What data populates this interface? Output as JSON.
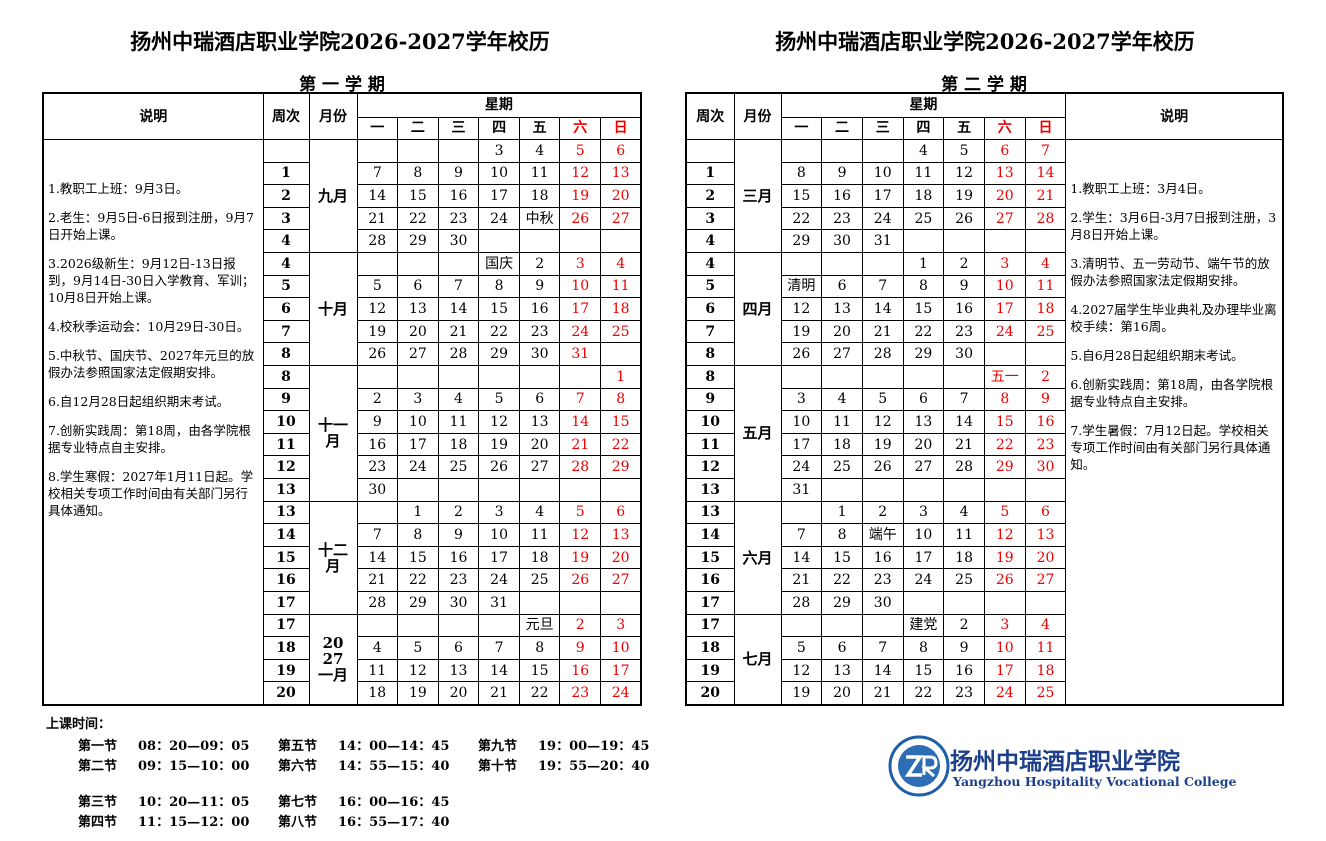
{
  "left": {
    "title": "扬州中瑞酒店职业学院2026-2027学年校历",
    "semester": "第 一 学 期",
    "headers": {
      "notes": "说明",
      "week": "周次",
      "month": "月份",
      "weekday": "星期",
      "days": [
        "一",
        "二",
        "三",
        "四",
        "五",
        "六",
        "日"
      ]
    },
    "notes": [
      "1.教职工上班：9月3日。",
      "2.老生：9月5日-6日报到注册，9月7日开始上课。",
      "3.2026级新生：9月12日-13日报到，9月14日-30日入学教育、军训；10月8日开始上课。",
      "4.校秋季运动会：10月29日-30日。",
      "5.中秋节、国庆节、2027年元旦的放假办法参照国家法定假期安排。",
      "6.自12月28日起组织期末考试。",
      "7.创新实践周：第18周，由各学院根据专业特点自主安排。",
      "8.学生寒假：2027年1月11日起。学校相关专项工作时间由有关部门另行具体通知。"
    ],
    "months": [
      {
        "label": "九月",
        "weeks": [
          {
            "week": null,
            "days": [
              null,
              null,
              null,
              3,
              4,
              5,
              6
            ]
          },
          {
            "week": 1,
            "days": [
              7,
              8,
              9,
              10,
              11,
              12,
              13
            ]
          },
          {
            "week": 2,
            "days": [
              14,
              15,
              16,
              17,
              18,
              19,
              20
            ]
          },
          {
            "week": 3,
            "days": [
              21,
              22,
              23,
              24,
              "中秋",
              26,
              27
            ]
          },
          {
            "week": 4,
            "days": [
              28,
              29,
              30,
              null,
              null,
              null,
              null
            ]
          }
        ]
      },
      {
        "label": "十月",
        "weeks": [
          {
            "week": 4,
            "days": [
              null,
              null,
              null,
              "国庆",
              2,
              3,
              4
            ]
          },
          {
            "week": 5,
            "days": [
              5,
              6,
              7,
              8,
              9,
              10,
              11
            ]
          },
          {
            "week": 6,
            "days": [
              12,
              13,
              14,
              15,
              16,
              17,
              18
            ]
          },
          {
            "week": 7,
            "days": [
              19,
              20,
              21,
              22,
              23,
              24,
              25
            ]
          },
          {
            "week": 8,
            "days": [
              26,
              27,
              28,
              29,
              30,
              31,
              null
            ]
          }
        ]
      },
      {
        "label": "十一月",
        "weeks": [
          {
            "week": 8,
            "days": [
              null,
              null,
              null,
              null,
              null,
              null,
              1
            ]
          },
          {
            "week": 9,
            "days": [
              2,
              3,
              4,
              5,
              6,
              7,
              8
            ]
          },
          {
            "week": 10,
            "days": [
              9,
              10,
              11,
              12,
              13,
              14,
              15
            ]
          },
          {
            "week": 11,
            "days": [
              16,
              17,
              18,
              19,
              20,
              21,
              22
            ]
          },
          {
            "week": 12,
            "days": [
              23,
              24,
              25,
              26,
              27,
              28,
              29
            ]
          },
          {
            "week": 13,
            "days": [
              30,
              null,
              null,
              null,
              null,
              null,
              null
            ]
          }
        ]
      },
      {
        "label": "十二月",
        "weeks": [
          {
            "week": 13,
            "days": [
              null,
              1,
              2,
              3,
              4,
              5,
              6
            ]
          },
          {
            "week": 14,
            "days": [
              7,
              8,
              9,
              10,
              11,
              12,
              13
            ]
          },
          {
            "week": 15,
            "days": [
              14,
              15,
              16,
              17,
              18,
              19,
              20
            ]
          },
          {
            "week": 16,
            "days": [
              21,
              22,
              23,
              24,
              25,
              26,
              27
            ]
          },
          {
            "week": 17,
            "days": [
              28,
              29,
              30,
              31,
              null,
              null,
              null
            ]
          }
        ]
      },
      {
        "label": "2027一月",
        "weeks": [
          {
            "week": 17,
            "days": [
              null,
              null,
              null,
              null,
              "元旦",
              2,
              3
            ]
          },
          {
            "week": 18,
            "days": [
              4,
              5,
              6,
              7,
              8,
              9,
              10
            ]
          },
          {
            "week": 19,
            "days": [
              11,
              12,
              13,
              14,
              15,
              16,
              17
            ]
          },
          {
            "week": 20,
            "days": [
              18,
              19,
              20,
              21,
              22,
              23,
              24
            ]
          }
        ]
      }
    ]
  },
  "right": {
    "title": "扬州中瑞酒店职业学院2026-2027学年校历",
    "semester": "第 二 学 期",
    "headers": {
      "notes": "说明",
      "week": "周次",
      "month": "月份",
      "weekday": "星期",
      "days": [
        "一",
        "二",
        "三",
        "四",
        "五",
        "六",
        "日"
      ]
    },
    "notes": [
      "1.教职工上班：3月4日。",
      "2.学生：3月6日-3月7日报到注册，3月8日开始上课。",
      "3.清明节、五一劳动节、端午节的放假办法参照国家法定假期安排。",
      "4.2027届学生毕业典礼及办理毕业离校手续：第16周。",
      "5.自6月28日起组织期末考试。",
      "6.创新实践周：第18周，由各学院根据专业特点自主安排。",
      "7.学生暑假：7月12日起。学校相关专项工作时间由有关部门另行具体通知。"
    ],
    "months": [
      {
        "label": "三月",
        "weeks": [
          {
            "week": null,
            "days": [
              null,
              null,
              null,
              4,
              5,
              6,
              7
            ]
          },
          {
            "week": 1,
            "days": [
              8,
              9,
              10,
              11,
              12,
              13,
              14
            ]
          },
          {
            "week": 2,
            "days": [
              15,
              16,
              17,
              18,
              19,
              20,
              21
            ]
          },
          {
            "week": 3,
            "days": [
              22,
              23,
              24,
              25,
              26,
              27,
              28
            ]
          },
          {
            "week": 4,
            "days": [
              29,
              30,
              31,
              null,
              null,
              null,
              null
            ]
          }
        ]
      },
      {
        "label": "四月",
        "weeks": [
          {
            "week": 4,
            "days": [
              null,
              null,
              null,
              1,
              2,
              3,
              4
            ]
          },
          {
            "week": 5,
            "days": [
              "清明",
              6,
              7,
              8,
              9,
              10,
              11
            ]
          },
          {
            "week": 6,
            "days": [
              12,
              13,
              14,
              15,
              16,
              17,
              18
            ]
          },
          {
            "week": 7,
            "days": [
              19,
              20,
              21,
              22,
              23,
              24,
              25
            ]
          },
          {
            "week": 8,
            "days": [
              26,
              27,
              28,
              29,
              30,
              null,
              null
            ]
          }
        ]
      },
      {
        "label": "五月",
        "weeks": [
          {
            "week": 8,
            "days": [
              null,
              null,
              null,
              null,
              null,
              "五一",
              2
            ]
          },
          {
            "week": 9,
            "days": [
              3,
              4,
              5,
              6,
              7,
              8,
              9
            ]
          },
          {
            "week": 10,
            "days": [
              10,
              11,
              12,
              13,
              14,
              15,
              16
            ]
          },
          {
            "week": 11,
            "days": [
              17,
              18,
              19,
              20,
              21,
              22,
              23
            ]
          },
          {
            "week": 12,
            "days": [
              24,
              25,
              26,
              27,
              28,
              29,
              30
            ]
          },
          {
            "week": 13,
            "days": [
              31,
              null,
              null,
              null,
              null,
              null,
              null
            ]
          }
        ]
      },
      {
        "label": "六月",
        "weeks": [
          {
            "week": 13,
            "days": [
              null,
              1,
              2,
              3,
              4,
              5,
              6
            ]
          },
          {
            "week": 14,
            "days": [
              7,
              8,
              "端午",
              10,
              11,
              12,
              13
            ]
          },
          {
            "week": 15,
            "days": [
              14,
              15,
              16,
              17,
              18,
              19,
              20
            ]
          },
          {
            "week": 16,
            "days": [
              21,
              22,
              23,
              24,
              25,
              26,
              27
            ]
          },
          {
            "week": 17,
            "days": [
              28,
              29,
              30,
              null,
              null,
              null,
              null
            ]
          }
        ]
      },
      {
        "label": "七月",
        "weeks": [
          {
            "week": 17,
            "days": [
              null,
              null,
              null,
              "建党",
              2,
              3,
              4
            ]
          },
          {
            "week": 18,
            "days": [
              5,
              6,
              7,
              8,
              9,
              10,
              11
            ]
          },
          {
            "week": 19,
            "days": [
              12,
              13,
              14,
              15,
              16,
              17,
              18
            ]
          },
          {
            "week": 20,
            "days": [
              19,
              20,
              21,
              22,
              23,
              24,
              25
            ]
          }
        ]
      }
    ]
  },
  "schedule": {
    "label": "上课时间：",
    "periods": [
      {
        "name": "第一节",
        "time": "08：20—09：05"
      },
      {
        "name": "第二节",
        "time": "09：15—10：00"
      },
      {
        "name": "第三节",
        "time": "10：20—11：05"
      },
      {
        "name": "第四节",
        "time": "11：15—12：00"
      },
      {
        "name": "第五节",
        "time": "14：00—14：45"
      },
      {
        "name": "第六节",
        "time": "14：55—15：40"
      },
      {
        "name": "第七节",
        "time": "16：00—16：45"
      },
      {
        "name": "第八节",
        "time": "16：55—17：40"
      },
      {
        "name": "第九节",
        "time": "19：00—19：45"
      },
      {
        "name": "第十节",
        "time": "19：55—20：40"
      }
    ]
  },
  "logo": {
    "name": "扬州中瑞酒店职业学院",
    "english": "Yangzhou Hospitality Vocational College"
  }
}
